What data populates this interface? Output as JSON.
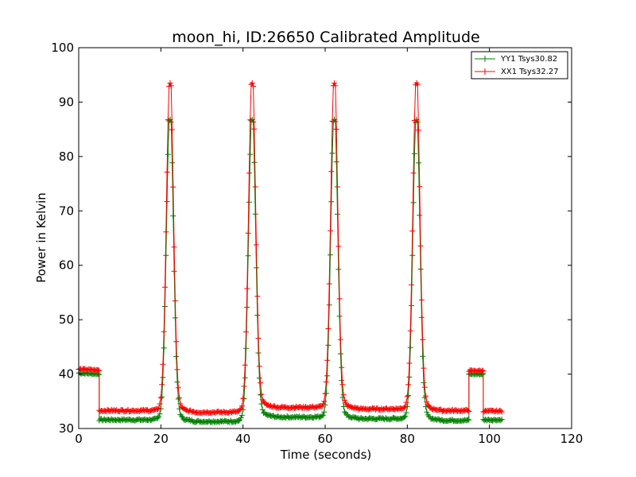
{
  "chart_data": {
    "type": "line",
    "title": "moon_hi, ID:26650 Calibrated Amplitude",
    "xlabel": "Time (seconds)",
    "ylabel": "Power in Kelvin",
    "xlim": [
      0,
      120
    ],
    "ylim": [
      30,
      100
    ],
    "xticks": [
      0,
      20,
      40,
      60,
      80,
      100,
      120
    ],
    "yticks": [
      30,
      40,
      50,
      60,
      70,
      80,
      90,
      100
    ],
    "grid": false,
    "legend_position": "top-right",
    "peak_centers": [
      22.2,
      42.2,
      62.2,
      82.2
    ],
    "series": [
      {
        "name": "YY1 Tsys30.82",
        "color": "#008000",
        "marker": "+",
        "segments": [
          {
            "x": [
              0,
              5.0
            ],
            "y": [
              40.2,
              40.0
            ],
            "style": "flat"
          },
          {
            "x": [
              5.0,
              95.0
            ],
            "baseline": [
              31.6,
              31.3,
              32.1,
              31.8,
              31.5
            ],
            "peak": 86.5,
            "style": "peaks"
          },
          {
            "x": [
              95.0,
              98.5
            ],
            "y": [
              40.0,
              40.0
            ],
            "style": "flat"
          },
          {
            "x": [
              98.5,
              103
            ],
            "y": [
              31.6,
              31.6
            ],
            "style": "flat"
          }
        ]
      },
      {
        "name": "XX1 Tsys32.27",
        "color": "#ff0000",
        "marker": "+",
        "segments": [
          {
            "x": [
              0,
              5.0
            ],
            "y": [
              40.9,
              40.7
            ],
            "style": "flat"
          },
          {
            "x": [
              5.0,
              95.0
            ],
            "baseline": [
              33.3,
              33.0,
              33.9,
              33.6,
              33.3
            ],
            "peak": 93.2,
            "style": "peaks"
          },
          {
            "x": [
              95.0,
              98.5
            ],
            "y": [
              40.6,
              40.6
            ],
            "style": "flat"
          },
          {
            "x": [
              98.5,
              103
            ],
            "y": [
              33.2,
              33.2
            ],
            "style": "flat"
          }
        ]
      }
    ]
  }
}
